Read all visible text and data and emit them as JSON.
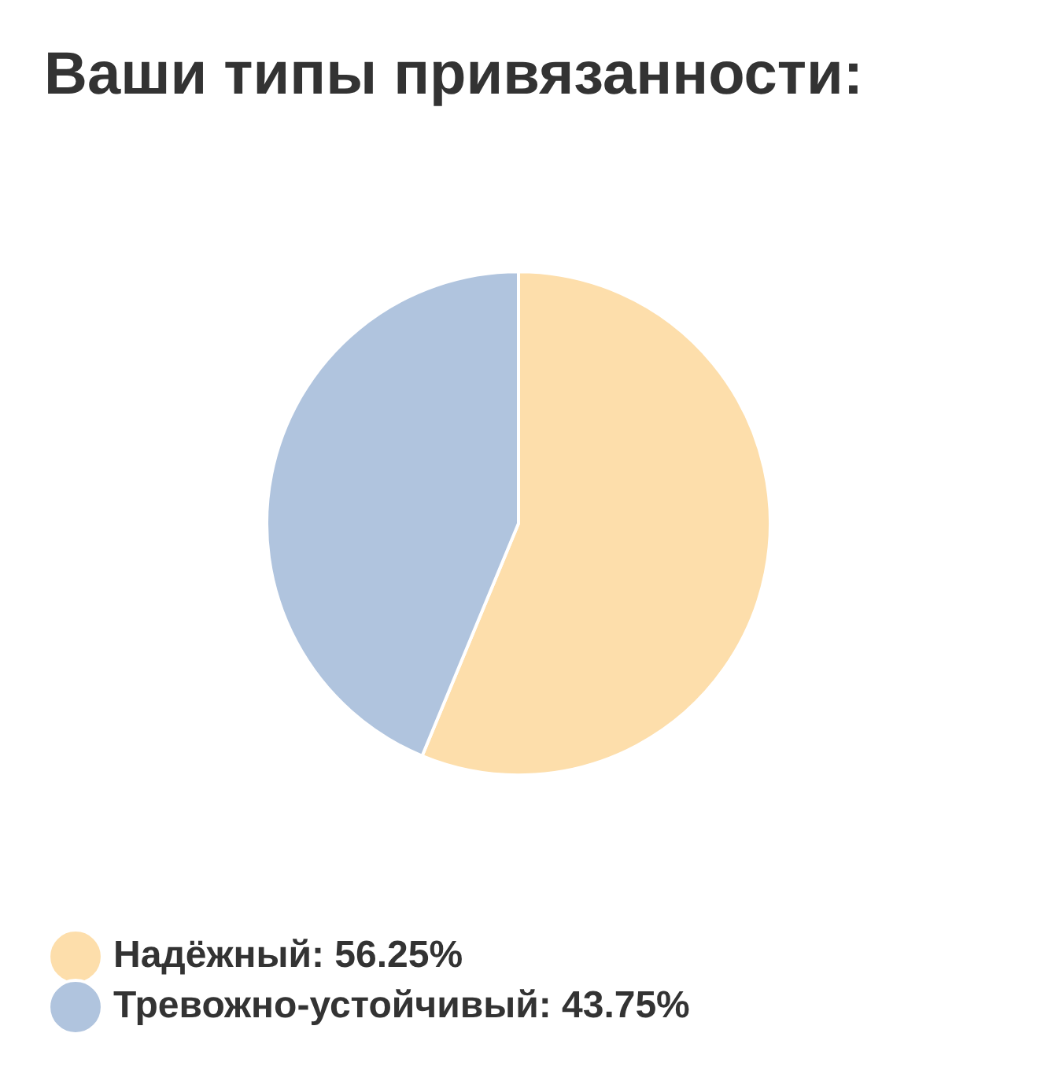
{
  "chart_data": {
    "type": "pie",
    "title": "Ваши типы привязанности:",
    "categories": [
      "Надёжный: 56.25%",
      "Тревожно-устойчивый: 43.75%"
    ],
    "values": [
      56.25,
      43.75
    ],
    "colors": [
      "#fddeab",
      "#b0c4de"
    ],
    "legend": "bottom"
  }
}
